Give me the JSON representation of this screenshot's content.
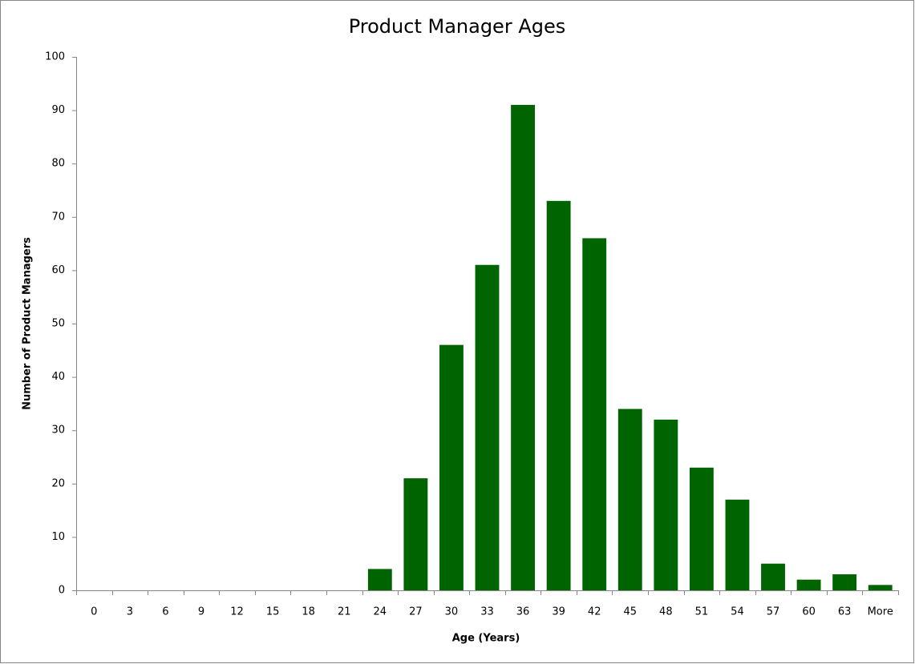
{
  "chart_data": {
    "type": "bar",
    "title": "Product Manager Ages",
    "x_label": "Age (Years)",
    "y_label": "Number of Product Managers",
    "categories": [
      "0",
      "3",
      "6",
      "9",
      "12",
      "15",
      "18",
      "21",
      "24",
      "27",
      "30",
      "33",
      "36",
      "39",
      "42",
      "45",
      "48",
      "51",
      "54",
      "57",
      "60",
      "63",
      "More"
    ],
    "values": [
      0,
      0,
      0,
      0,
      0,
      0,
      0,
      0,
      4,
      21,
      46,
      61,
      91,
      73,
      66,
      34,
      32,
      23,
      17,
      5,
      2,
      3,
      1
    ],
    "color": "#006400",
    "ylim": [
      0,
      100
    ],
    "yticks": [
      0,
      10,
      20,
      30,
      40,
      50,
      60,
      70,
      80,
      90,
      100
    ],
    "grid": false
  }
}
